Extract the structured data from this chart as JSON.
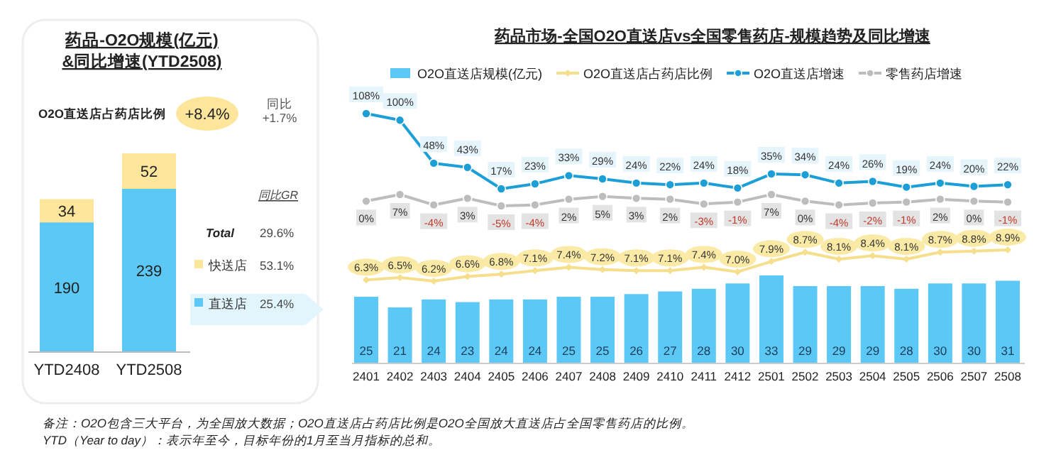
{
  "chart_data": [
    {
      "type": "bar",
      "title": "药品-O2O规模(亿元)\n&同比增速(YTD2508)",
      "categories": [
        "YTD2408",
        "YTD2508"
      ],
      "stacked": true,
      "data_labels": true,
      "legend": "right",
      "series": [
        {
          "name": "直送店",
          "color": "#5bc8f5",
          "values": [
            190,
            239
          ]
        },
        {
          "name": "快送店",
          "color": "#fde69b",
          "values": [
            34,
            52
          ]
        }
      ],
      "annotations": [
        "O2O直送店占药店比例",
        "+8.4%",
        "同比",
        "+1.7%",
        "同比GR",
        "Total",
        "29.6%",
        "53.1%",
        "25.4%",
        "备注：O2O包含三大平台，为全国放大数据；O2O直送店占药店比例是O2O全国放大直送店占全国零售药店的比例。",
        "YTD（Year to day）：表示年至今，目标年份的1月至当月指标的总和。"
      ]
    },
    {
      "type": "bar",
      "legend": "top",
      "categories": [
        "2401",
        "2402",
        "2403",
        "2404",
        "2405",
        "2406",
        "2407",
        "2408",
        "2409",
        "2410",
        "2411",
        "2412",
        "2501",
        "2502",
        "2503",
        "2504",
        "2505",
        "2506",
        "2507",
        "2508"
      ],
      "series": [
        {
          "name": "O2O直送店规模(亿元)",
          "color": "#5bc8f5",
          "values": [
            25,
            21,
            24,
            23,
            24,
            24,
            25,
            25,
            26,
            27,
            28,
            30,
            33,
            29,
            29,
            29,
            28,
            30,
            30,
            31
          ],
          "value_labels": [
            "25",
            "21",
            "24",
            "23",
            "24",
            "24",
            "25",
            "25",
            "26",
            "27",
            "28",
            "30",
            "33",
            "29",
            "29",
            "29",
            "28",
            "30",
            "30",
            "31"
          ]
        }
      ]
    },
    {
      "type": "line",
      "legend": "top",
      "marker": "diamond",
      "categories": [
        null,
        null,
        null,
        null,
        null,
        null,
        null,
        null,
        null,
        null,
        null,
        null,
        null,
        null,
        null,
        null,
        null,
        null,
        null,
        null
      ],
      "series": [
        {
          "name": "O2O直送店占药店比例",
          "color": "#f5df8c",
          "values": [
            6.3,
            6.5,
            6.2,
            6.6,
            6.8,
            7.1,
            7.4,
            7.2,
            7.1,
            7.1,
            7.4,
            7.0,
            7.9,
            8.7,
            8.1,
            8.4,
            8.1,
            8.7,
            8.8,
            8.9
          ],
          "value_labels": [
            "6.3%",
            "6.5%",
            "6.2%",
            "6.6%",
            "6.8%",
            "7.1%",
            "7.4%",
            "7.2%",
            "7.1%",
            "7.1%",
            "7.4%",
            "7.0%",
            "7.9%",
            "8.7%",
            "8.1%",
            "8.4%",
            "8.1%",
            "8.7%",
            "8.8%",
            "8.9%"
          ]
        }
      ]
    },
    {
      "type": "line",
      "title": "药品市场-全国O2O直送店vs全国零售药店-规模趋势及同比增速",
      "legend": "top",
      "marker": "circle",
      "categories": [
        null,
        null,
        null,
        null,
        null,
        null,
        null,
        null,
        null,
        null,
        null,
        null,
        null,
        null,
        null,
        null,
        null,
        null,
        null,
        null
      ],
      "series": [
        {
          "name": "O2O直送店增速",
          "color": "#1b9fd6",
          "values": [
            108,
            100,
            48,
            43,
            17,
            23,
            33,
            29,
            24,
            22,
            24,
            18,
            35,
            34,
            24,
            26,
            19,
            24,
            20,
            22
          ],
          "value_labels": [
            "108%",
            "100%",
            "48%",
            "43%",
            "17%",
            "23%",
            "33%",
            "29%",
            "24%",
            "22%",
            "24%",
            "18%",
            "35%",
            "34%",
            "24%",
            "26%",
            "19%",
            "24%",
            "20%",
            "22%"
          ]
        }
      ]
    },
    {
      "type": "line",
      "legend": "top",
      "marker": "circle",
      "categories": [
        null,
        null,
        null,
        null,
        null,
        null,
        null,
        null,
        null,
        null,
        null,
        null,
        null,
        null,
        null,
        null,
        null,
        null,
        null,
        null
      ],
      "series": [
        {
          "name": "零售药店增速",
          "color": "#bdbdbd",
          "values": [
            0,
            7,
            -4,
            3,
            -5,
            -4,
            2,
            5,
            3,
            2,
            -3,
            -1,
            7,
            0,
            -4,
            -2,
            -1,
            2,
            0,
            -1
          ],
          "value_labels": [
            "0%",
            "7%",
            "-4%",
            "3%",
            "-5%",
            "-4%",
            "2%",
            "5%",
            "3%",
            "2%",
            "-3%",
            "-1%",
            "7%",
            "0%",
            "-4%",
            "-2%",
            "-1%",
            "2%",
            "0%",
            "-1%"
          ]
        }
      ]
    }
  ]
}
